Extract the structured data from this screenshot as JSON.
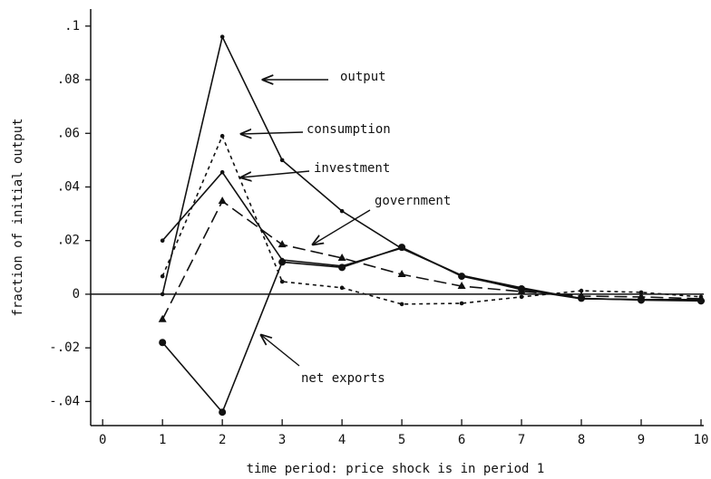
{
  "chart_data": {
    "type": "line",
    "xlabel": "time period: price shock is in period 1",
    "ylabel": "fraction of initial output",
    "x": [
      1,
      2,
      3,
      4,
      5,
      6,
      7,
      8,
      9,
      10
    ],
    "series": [
      {
        "name": "output",
        "color": "#111111",
        "dash": "solid",
        "marker": "dot",
        "values": [
          0,
          0.096,
          0.05,
          0.031,
          0.017,
          0.007,
          0.0024,
          -0.0017,
          -0.002,
          -0.002
        ]
      },
      {
        "name": "consumption",
        "color": "#111111",
        "dash": "short",
        "marker": "dot",
        "values": [
          0.0067,
          0.059,
          0.0047,
          0.0024,
          -0.0037,
          -0.0034,
          -0.001,
          0.0013,
          0.0007,
          -0.001
        ]
      },
      {
        "name": "investment",
        "color": "#111111",
        "dash": "solid",
        "marker": "dot",
        "values": [
          0.02,
          0.0455,
          0.0128,
          0.0105,
          0.0172,
          0.007,
          0.0017,
          -0.0017,
          -0.002,
          -0.0024
        ]
      },
      {
        "name": "government",
        "color": "#111111",
        "dash": "long",
        "marker": "triangle",
        "values": [
          -0.0094,
          0.0347,
          0.0185,
          0.0135,
          0.0074,
          0.003,
          0.001,
          -0.0007,
          -0.001,
          -0.0017
        ]
      },
      {
        "name": "net exports",
        "color": "#111111",
        "dash": "solid",
        "marker": "big-dot",
        "values": [
          -0.018,
          -0.044,
          0.012,
          0.01,
          0.0175,
          0.0067,
          0.002,
          -0.0015,
          -0.0022,
          -0.0025
        ]
      }
    ],
    "xlim": [
      -0.2,
      10
    ],
    "ylim": [
      -0.05,
      0.105
    ],
    "xticks": [
      0,
      1,
      2,
      3,
      4,
      5,
      6,
      7,
      8,
      9,
      10
    ],
    "yticks": [
      {
        "value": -0.04,
        "label": "-.04"
      },
      {
        "value": -0.02,
        "label": "-.02"
      },
      0,
      {
        "value": 0.02,
        "label": ".02"
      },
      {
        "value": 0.04,
        "label": ".04"
      },
      {
        "value": 0.06,
        "label": ".06"
      },
      {
        "value": 0.08,
        "label": ".08"
      },
      {
        "value": 0.1,
        "label": ".1"
      }
    ],
    "grid": false
  }
}
